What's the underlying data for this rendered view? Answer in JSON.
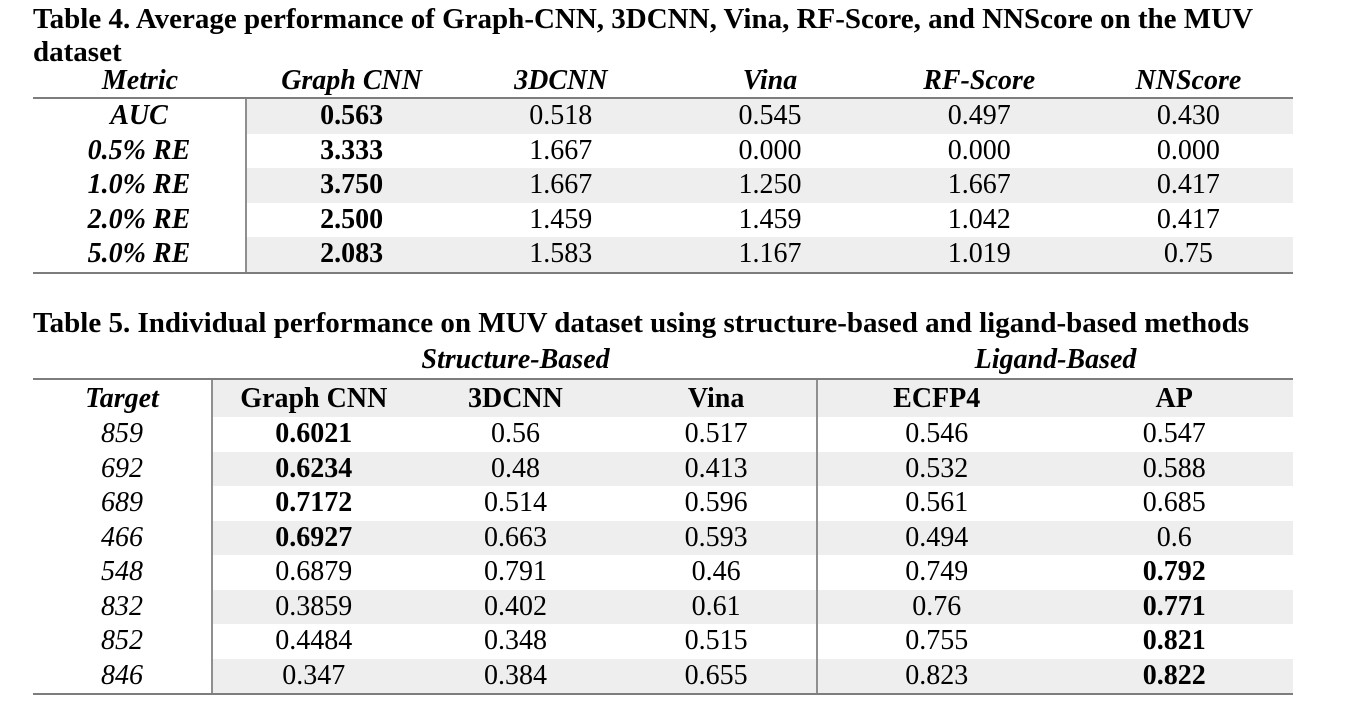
{
  "colors": {
    "stripe": "#eeeeee",
    "rule": "#7d7d7d",
    "text": "#000000",
    "background": "#ffffff"
  },
  "table4": {
    "title_line1": "Table 4. Average performance of Graph-CNN, 3DCNN, Vina, RF-Score, and NNScore on the MUV",
    "title_line2": "dataset",
    "columns": [
      "Metric",
      "Graph CNN",
      "3DCNN",
      "Vina",
      "RF-Score",
      "NNScore"
    ],
    "rows": [
      {
        "cells": [
          "AUC",
          "0.563",
          "0.518",
          "0.545",
          "0.497",
          "0.430"
        ],
        "bold_cols": [
          1
        ],
        "shaded": true
      },
      {
        "cells": [
          "0.5% RE",
          "3.333",
          "1.667",
          "0.000",
          "0.000",
          "0.000"
        ],
        "bold_cols": [
          1
        ],
        "shaded": false
      },
      {
        "cells": [
          "1.0% RE",
          "3.750",
          "1.667",
          "1.250",
          "1.667",
          "0.417"
        ],
        "bold_cols": [
          1
        ],
        "shaded": true
      },
      {
        "cells": [
          "2.0% RE",
          "2.500",
          "1.459",
          "1.459",
          "1.042",
          "0.417"
        ],
        "bold_cols": [
          1
        ],
        "shaded": false
      },
      {
        "cells": [
          "5.0% RE",
          "2.083",
          "1.583",
          "1.167",
          "1.019",
          "0.75"
        ],
        "bold_cols": [
          1
        ],
        "shaded": true
      }
    ]
  },
  "table5": {
    "title": "Table 5. Individual performance on MUV dataset using structure-based and ligand-based methods",
    "group_headers": {
      "structure": "Structure-Based",
      "ligand": "Ligand-Based"
    },
    "columns": [
      "Target",
      "Graph CNN",
      "3DCNN",
      "Vina",
      "ECFP4",
      "AP"
    ],
    "rows": [
      {
        "cells": [
          "859",
          "0.6021",
          "0.56",
          "0.517",
          "0.546",
          "0.547"
        ],
        "bold_cols": [
          1
        ],
        "shaded": false
      },
      {
        "cells": [
          "692",
          "0.6234",
          "0.48",
          "0.413",
          "0.532",
          "0.588"
        ],
        "bold_cols": [
          1
        ],
        "shaded": true
      },
      {
        "cells": [
          "689",
          "0.7172",
          "0.514",
          "0.596",
          "0.561",
          "0.685"
        ],
        "bold_cols": [
          1
        ],
        "shaded": false
      },
      {
        "cells": [
          "466",
          "0.6927",
          "0.663",
          "0.593",
          "0.494",
          "0.6"
        ],
        "bold_cols": [
          1
        ],
        "shaded": true
      },
      {
        "cells": [
          "548",
          "0.6879",
          "0.791",
          "0.46",
          "0.749",
          "0.792"
        ],
        "bold_cols": [
          5
        ],
        "shaded": false
      },
      {
        "cells": [
          "832",
          "0.3859",
          "0.402",
          "0.61",
          "0.76",
          "0.771"
        ],
        "bold_cols": [
          5
        ],
        "shaded": true
      },
      {
        "cells": [
          "852",
          "0.4484",
          "0.348",
          "0.515",
          "0.755",
          "0.821"
        ],
        "bold_cols": [
          5
        ],
        "shaded": false
      },
      {
        "cells": [
          "846",
          "0.347",
          "0.384",
          "0.655",
          "0.823",
          "0.822"
        ],
        "bold_cols": [
          5
        ],
        "shaded": true
      }
    ]
  }
}
